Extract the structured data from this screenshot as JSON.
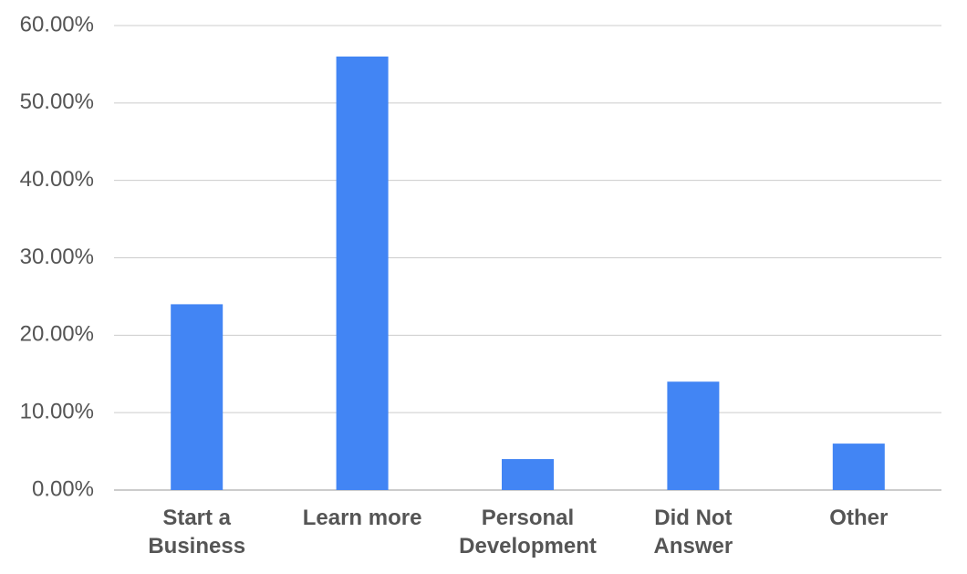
{
  "chart_data": {
    "type": "bar",
    "categories": [
      "Start a Business",
      "Learn more",
      "Personal Development",
      "Did Not Answer",
      "Other"
    ],
    "values": [
      24,
      56,
      4,
      14,
      6
    ],
    "color": "#4285f4",
    "ylim": [
      0,
      60
    ],
    "yticks": [
      {
        "value": 0,
        "label": "0.00%"
      },
      {
        "value": 10,
        "label": "10.00%"
      },
      {
        "value": 20,
        "label": "20.00%"
      },
      {
        "value": 30,
        "label": "30.00%"
      },
      {
        "value": 40,
        "label": "40.00%"
      },
      {
        "value": 50,
        "label": "50.00%"
      },
      {
        "value": 60,
        "label": "60.00%"
      }
    ],
    "grid": true
  }
}
